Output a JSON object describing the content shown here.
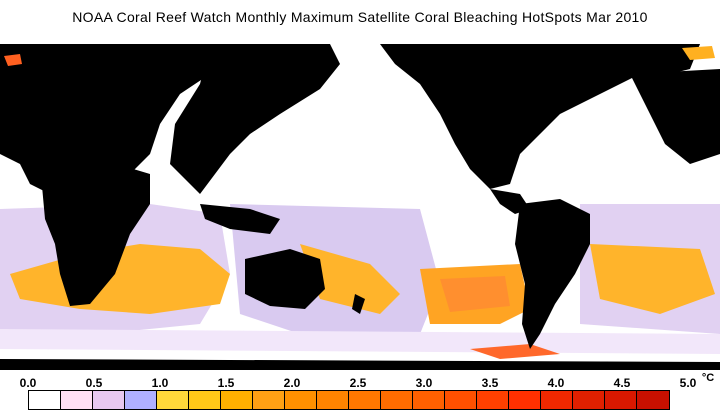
{
  "title": "NOAA Coral Reef Watch Monthly Maximum Satellite Coral Bleaching HotSpots    Mar 2010",
  "legend": {
    "ticks": [
      "0.0",
      "0.5",
      "1.0",
      "1.5",
      "2.0",
      "2.5",
      "3.0",
      "3.5",
      "4.0",
      "4.5",
      "5.0"
    ],
    "unit": "°C",
    "colors": [
      "#ffffff",
      "#ffe0f4",
      "#e8c8f0",
      "#b0b0ff",
      "#ffd83a",
      "#ffc818",
      "#ffb000",
      "#ffa014",
      "#ff9000",
      "#ff8400",
      "#ff7800",
      "#ff6c00",
      "#ff6000",
      "#ff5000",
      "#ff4000",
      "#ff3000",
      "#f02800",
      "#e02000",
      "#d81800",
      "#c81000"
    ]
  },
  "colors": {
    "land": "#000000",
    "ocean_base": "#ffffff",
    "low": "#d8c8f0",
    "mid": "#ffb020",
    "high": "#ff6020"
  }
}
